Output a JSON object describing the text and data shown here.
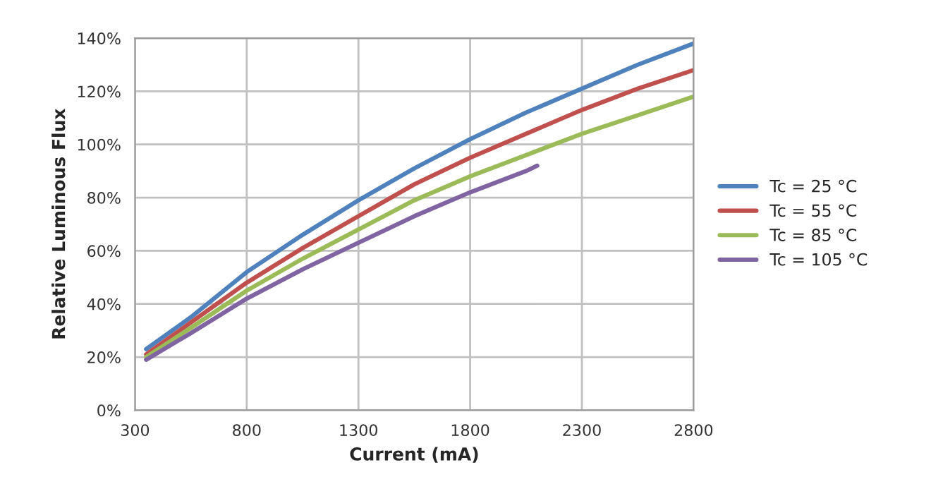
{
  "chart_data": {
    "type": "line",
    "xlabel": "Current (mA)",
    "ylabel": "Relative Luminous Flux",
    "xlim": [
      300,
      2800
    ],
    "xticks": [
      300,
      800,
      1300,
      1800,
      2300,
      2800
    ],
    "ylim": [
      0,
      140
    ],
    "yticks": [
      {
        "value": 0,
        "label": "0%"
      },
      {
        "value": 20,
        "label": "20%"
      },
      {
        "value": 40,
        "label": "40%"
      },
      {
        "value": 60,
        "label": "60%"
      },
      {
        "value": 80,
        "label": "80%"
      },
      {
        "value": 100,
        "label": "100%"
      },
      {
        "value": 120,
        "label": "120%"
      },
      {
        "value": 140,
        "label": "140%"
      }
    ],
    "grid": true,
    "legend": "right",
    "line_style": "solid",
    "series": [
      {
        "name": "Tc = 25 °C",
        "color": "#4f81bd",
        "x": [
          350,
          550,
          800,
          1050,
          1300,
          1550,
          1800,
          2050,
          2300,
          2550,
          2800
        ],
        "values": [
          23,
          35,
          52,
          66,
          79,
          91,
          102,
          112,
          121,
          130,
          138
        ]
      },
      {
        "name": "Tc = 55 °C",
        "color": "#c0504d",
        "x": [
          350,
          550,
          800,
          1050,
          1300,
          1550,
          1800,
          2050,
          2300,
          2550,
          2800
        ],
        "values": [
          21,
          33,
          48,
          61,
          73,
          85,
          95,
          104,
          113,
          121,
          128
        ]
      },
      {
        "name": "Tc = 85 °C",
        "color": "#9bbb59",
        "x": [
          350,
          550,
          800,
          1050,
          1300,
          1550,
          1800,
          2050,
          2300,
          2550,
          2800
        ],
        "values": [
          20,
          31,
          45,
          57,
          68,
          79,
          88,
          96,
          104,
          111,
          118
        ]
      },
      {
        "name": "Tc = 105 °C",
        "color": "#8064a2",
        "x": [
          350,
          550,
          800,
          1050,
          1300,
          1550,
          1800,
          2050,
          2100
        ],
        "values": [
          19,
          29,
          42,
          53,
          63,
          73,
          82,
          90,
          92
        ]
      }
    ]
  }
}
